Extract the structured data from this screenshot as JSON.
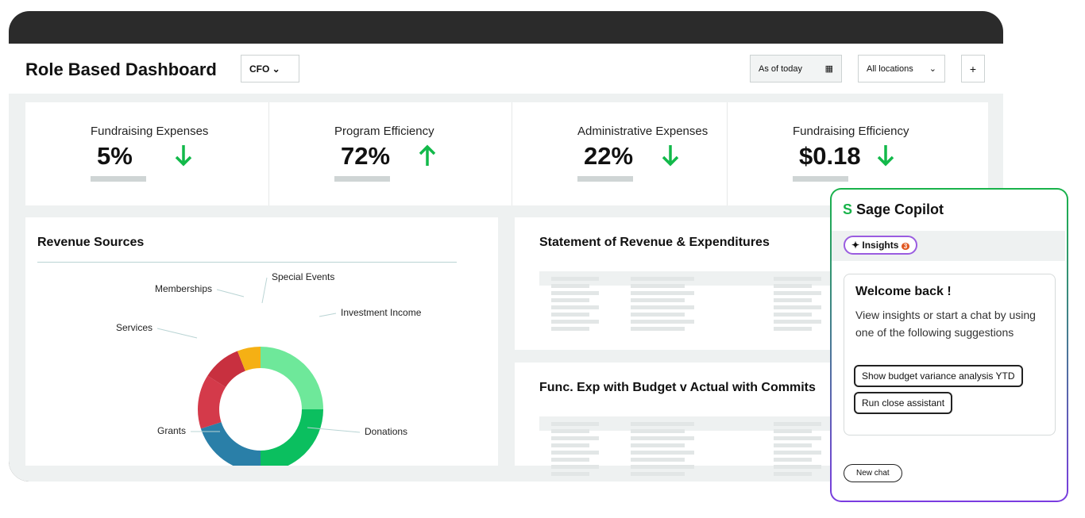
{
  "header": {
    "title": "Role Based Dashboard",
    "role": "CFO",
    "date_filter": "As of today",
    "location_filter": "All locations",
    "add_button": "+"
  },
  "kpis": [
    {
      "label": "Fundraising Expenses",
      "value": "5%",
      "trend": "down"
    },
    {
      "label": "Program Efficiency",
      "value": "72%",
      "trend": "up"
    },
    {
      "label": "Administrative Expenses",
      "value": "22%",
      "trend": "down"
    },
    {
      "label": "Fundraising Efficiency",
      "value": "$0.18",
      "trend": "down"
    }
  ],
  "revenue_sources": {
    "type": "donut",
    "title": "Revenue Sources",
    "categories": [
      "Investment Income",
      "Donations",
      "Grants",
      "Services",
      "Memberships",
      "Special Events"
    ],
    "values": [
      25,
      25,
      20,
      14,
      10,
      6
    ],
    "colors": [
      "#6ee89a",
      "#0bbf5f",
      "#2a7fa8",
      "#d43a4a",
      "#c8303f",
      "#f5b014"
    ]
  },
  "panels": [
    {
      "title": "Statement of Revenue & Expenditures"
    },
    {
      "title": "Func. Exp with Budget v Actual with Commits"
    }
  ],
  "copilot": {
    "title": "Sage Copilot",
    "tab": "Insights",
    "badge": "3",
    "welcome": "Welcome back !",
    "intro": "View insights or start a chat by using one of the following suggestions",
    "suggestions": [
      "Show budget variance analysis YTD",
      "Run close assistant"
    ],
    "new_chat": "New chat"
  }
}
